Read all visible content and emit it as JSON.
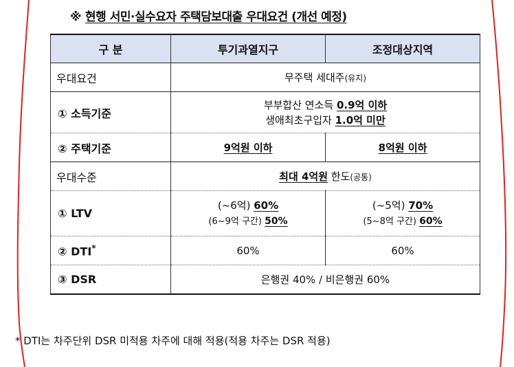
{
  "title": {
    "ref_mark": "※",
    "text": "현행 서민·실수요자 주택담보대출 우대요건 (개선 예정)"
  },
  "header": {
    "col0": "구  분",
    "col1": "투기과열지구",
    "col2": "조정대상지역"
  },
  "rows": {
    "req_label": "우대요건",
    "req_value": "무주택 세대주",
    "req_note": "(유지)",
    "income_label": "① 소득기준",
    "income_line1_prefix": "부부합산 연소득 ",
    "income_line1_value": "0.9억 이하",
    "income_line2_prefix": "생애최초구입자 ",
    "income_line2_value": "1.0억 미만",
    "house_label": "② 주택기준",
    "house_col1": "9억원 이하",
    "house_col2": "8억원 이하",
    "level_label": "우대수준",
    "level_value": "최대 4억원",
    "level_suffix": " 한도",
    "level_note": "(공통)",
    "ltv_label": "① LTV",
    "ltv_col1_line1_prefix": "(~6억) ",
    "ltv_col1_line1_value": "60%",
    "ltv_col1_line2_prefix": "(6~9억 구간) ",
    "ltv_col1_line2_value": "50%",
    "ltv_col2_line1_prefix": "(~5억) ",
    "ltv_col2_line1_value": "70%",
    "ltv_col2_line2_prefix": "(5~8억 구간) ",
    "ltv_col2_line2_value": "60%",
    "dti_label": "② DTI",
    "dti_sup": "*",
    "dti_col1": "60%",
    "dti_col2": "60%",
    "dsr_label": "③ DSR",
    "dsr_value": "은행권 40% / 비은행권 60%"
  },
  "footnote": "* DTI는 차주단위 DSR 미적용 차주에 대해 적용(적용 차주는 DSR 적용)",
  "colors": {
    "header_bg": "#d9e1f2",
    "annotation_red": "#e02020"
  }
}
